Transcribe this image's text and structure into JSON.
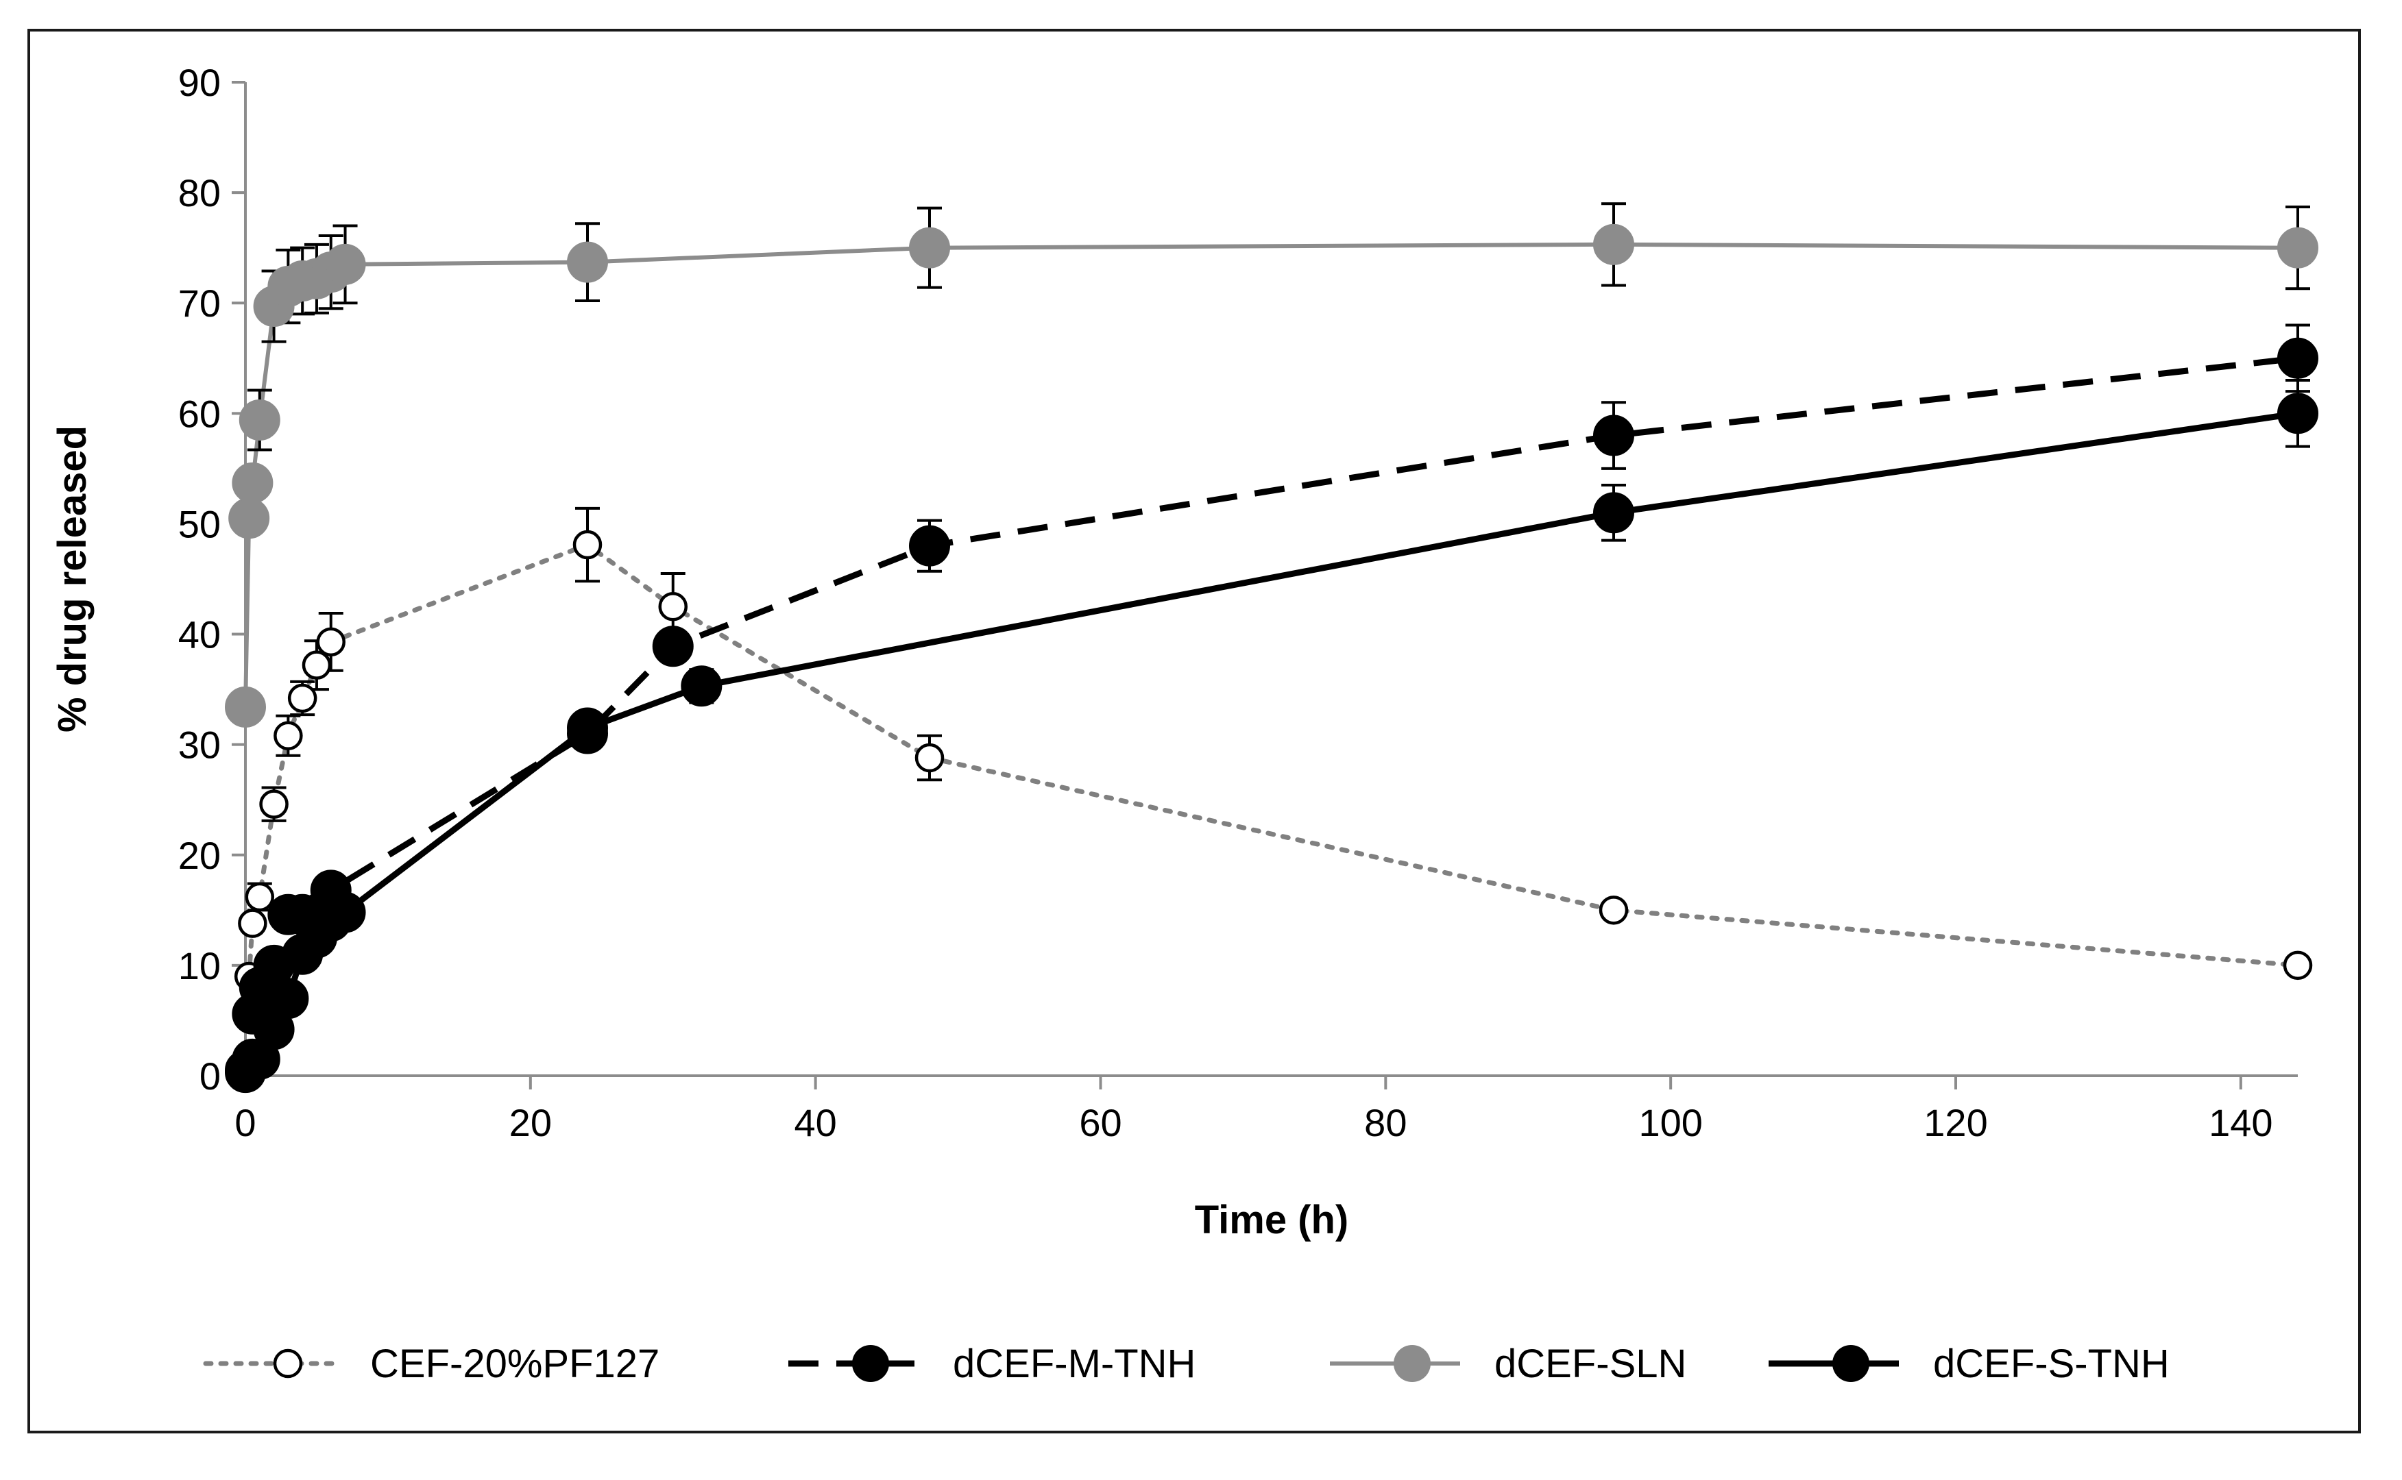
{
  "chart_data": {
    "type": "line",
    "title": "",
    "xlabel": "Time (h)",
    "ylabel": "% drug released",
    "xlim": [
      0,
      144
    ],
    "ylim": [
      0,
      90
    ],
    "xticks": [
      0,
      20,
      40,
      60,
      80,
      100,
      120,
      140
    ],
    "yticks": [
      0,
      10,
      20,
      30,
      40,
      50,
      60,
      70,
      80,
      90
    ],
    "grid": false,
    "legend_position": "bottom",
    "series": [
      {
        "name": "CEF-20%PF127",
        "color": "#808080",
        "line_style": "dotted",
        "marker": "open-circle",
        "x": [
          0.25,
          0.5,
          1,
          2,
          3,
          4,
          5,
          6,
          24,
          30,
          48,
          96,
          144
        ],
        "y": [
          9,
          13.8,
          16.2,
          24.6,
          30.8,
          34.2,
          37.2,
          39.3,
          48.1,
          42.5,
          28.8,
          15,
          10
        ],
        "err": [
          0,
          0,
          1.2,
          1.5,
          1.8,
          1.5,
          2.2,
          2.6,
          3.3,
          3,
          2,
          0,
          0
        ]
      },
      {
        "name": "dCEF-M-TNH",
        "color": "#000000",
        "line_style": "dashed",
        "marker": "filled-circle",
        "x": [
          0,
          0.5,
          1,
          2,
          3,
          4,
          5,
          6,
          24,
          30,
          48,
          96,
          144
        ],
        "y": [
          0.5,
          5.6,
          8,
          10,
          14.6,
          14.6,
          14.6,
          16.8,
          31,
          38.9,
          48,
          58,
          65
        ],
        "err": [
          0,
          0,
          0,
          0,
          0,
          0,
          0,
          0,
          0,
          0,
          2.3,
          3,
          3
        ]
      },
      {
        "name": "dCEF-SLN",
        "color": "#8c8c8c",
        "line_style": "solid",
        "marker": "filled-circle",
        "x": [
          0,
          0.25,
          0.5,
          1,
          2,
          3,
          4,
          5,
          6,
          7,
          24,
          48,
          96,
          144
        ],
        "y": [
          33.4,
          50.5,
          53.7,
          59.4,
          69.7,
          71.5,
          72,
          72.2,
          72.8,
          73.5,
          73.7,
          75,
          75.3,
          75
        ],
        "err": [
          0,
          0,
          0,
          2.7,
          3.2,
          3.3,
          3,
          3.1,
          3.3,
          3.5,
          3.5,
          3.6,
          3.7,
          3.7
        ]
      },
      {
        "name": "dCEF-S-TNH",
        "color": "#000000",
        "line_style": "solid",
        "marker": "filled-circle",
        "x": [
          0,
          0.5,
          1,
          2,
          3,
          4,
          5,
          6,
          7,
          24,
          32,
          96,
          144
        ],
        "y": [
          0.3,
          1.5,
          1.5,
          4.2,
          7,
          11,
          12.5,
          14,
          14.8,
          31.5,
          35.3,
          51,
          60
        ],
        "err": [
          0,
          0,
          0,
          0,
          0,
          0,
          0,
          0,
          0,
          0,
          1.5,
          2.5,
          3
        ]
      }
    ]
  }
}
